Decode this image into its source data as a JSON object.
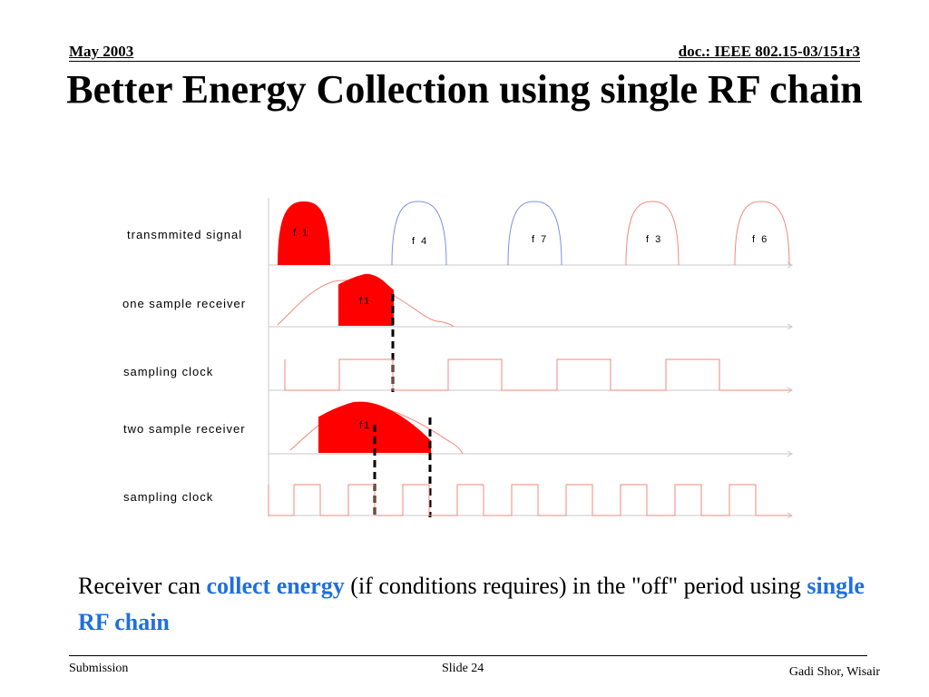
{
  "header": {
    "date": "May 2003",
    "doc_id": "doc.: IEEE 802.15-03/151r3"
  },
  "title": "Better Energy Collection using single RF chain",
  "diagram": {
    "row_labels": [
      "transmmited signal",
      "one sample receiver",
      "sampling clock",
      "two sample receiver",
      "sampling clock"
    ],
    "pulse_labels": [
      "f 1",
      "f 4",
      "f 7",
      "f 3",
      "f 6"
    ],
    "received_label_one": "f1",
    "received_label_two": "f1",
    "colors": {
      "active": "#ff0000",
      "pulse_outline_blue": "#7d8fe6",
      "pulse_outline_red": "#f08a7a",
      "clock": "#f08a7a",
      "axis": "#c8c8c8"
    }
  },
  "body": {
    "part1": "Receiver can ",
    "highlight1": "collect energy",
    "part2": " (if  conditions requires) in the \"off\" period using ",
    "highlight2": "single RF chain"
  },
  "footer": {
    "left": "Submission",
    "center": "Slide 24",
    "right": "Gadi Shor, Wisair"
  }
}
